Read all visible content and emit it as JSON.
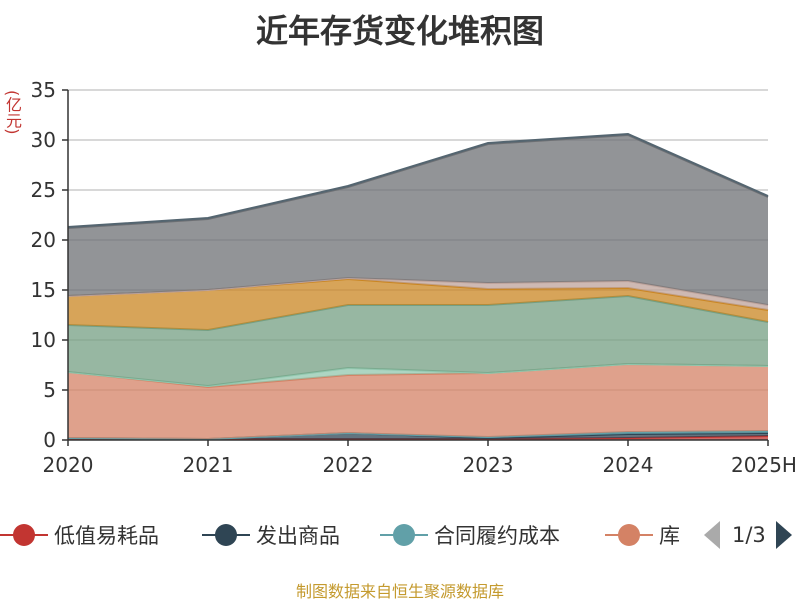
{
  "title": "近年存货变化堆积图",
  "unit_label": "(亿元)",
  "source": "制图数据来自恒生聚源数据库",
  "legend_page": "1/3",
  "legend": [
    {
      "name": "低值易耗品",
      "color": "#c23531"
    },
    {
      "name": "发出商品",
      "color": "#2f4554"
    },
    {
      "name": "合同履约成本",
      "color": "#61a0a8"
    },
    {
      "name": "库",
      "color": "#d48265"
    }
  ],
  "chart_data": {
    "type": "area",
    "stacked": true,
    "title": "近年存货变化堆积图",
    "ylabel": "(亿元)",
    "categories": [
      "2020",
      "2021",
      "2022",
      "2023",
      "2024",
      "2025H"
    ],
    "ylim": [
      0,
      35
    ],
    "yticks": [
      0,
      5,
      10,
      15,
      20,
      25,
      30,
      35
    ],
    "grid": true,
    "legend_position": "bottom",
    "series": [
      {
        "name": "低值易耗品",
        "color": "#c23531",
        "values": [
          0.1,
          0.1,
          0.1,
          0.1,
          0.2,
          0.4
        ]
      },
      {
        "name": "发出商品",
        "color": "#2f4554",
        "values": [
          0.1,
          0.0,
          0.6,
          0.1,
          0.4,
          0.3
        ]
      },
      {
        "name": "合同履约成本",
        "color": "#61a0a8",
        "values": [
          0.0,
          0.0,
          0.0,
          0.1,
          0.2,
          0.2
        ]
      },
      {
        "name": "库",
        "color": "#d48265",
        "values": [
          6.6,
          5.2,
          5.8,
          6.4,
          6.8,
          6.5
        ]
      },
      {
        "name": "",
        "color": "#91c7ae",
        "values": [
          0.0,
          0.1,
          0.7,
          0.0,
          0.0,
          0.0
        ]
      },
      {
        "name": "",
        "color": "#749f83",
        "values": [
          4.7,
          5.6,
          6.3,
          6.8,
          6.8,
          4.4
        ]
      },
      {
        "name": "",
        "color": "#ca8622",
        "values": [
          2.9,
          4.0,
          2.6,
          1.6,
          0.8,
          1.2
        ]
      },
      {
        "name": "",
        "color": "#bda29a",
        "values": [
          0.0,
          0.0,
          0.1,
          0.6,
          0.7,
          0.5
        ]
      },
      {
        "name": "",
        "color": "#6e7074",
        "values": [
          6.8,
          7.1,
          9.1,
          13.9,
          14.6,
          10.8
        ]
      },
      {
        "name": "",
        "color": "#546570",
        "values": [
          0.1,
          0.1,
          0.1,
          0.1,
          0.1,
          0.1
        ]
      }
    ]
  }
}
